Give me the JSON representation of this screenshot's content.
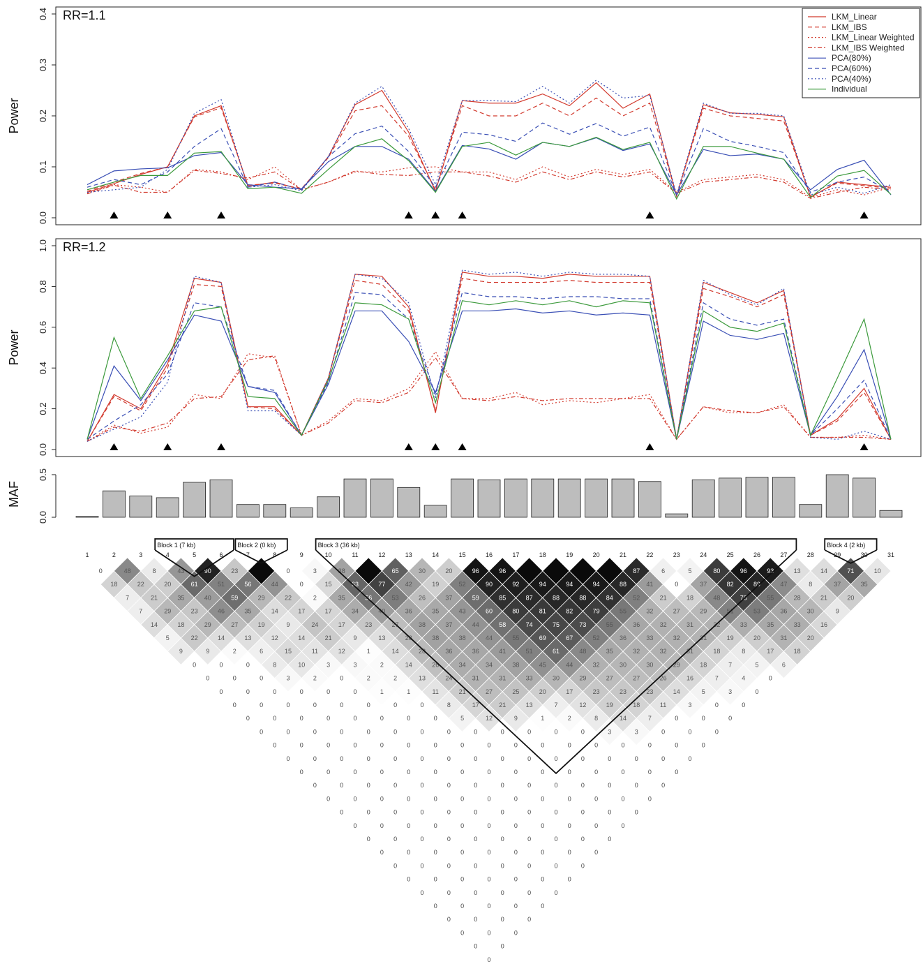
{
  "chart_data": [
    {
      "type": "line",
      "panel_label": "RR=1.1",
      "ylabel": "Power",
      "ylim": [
        0,
        0.4
      ],
      "yticks": [
        "0.0",
        "0.1",
        "0.2",
        "0.3",
        "0.4"
      ],
      "x": [
        1,
        2,
        3,
        4,
        5,
        6,
        7,
        8,
        9,
        10,
        11,
        12,
        13,
        14,
        15,
        16,
        17,
        18,
        19,
        20,
        21,
        22,
        23,
        24,
        25,
        26,
        27,
        28,
        29,
        30,
        31
      ],
      "causal_snp_markers": [
        2,
        4,
        6,
        13,
        14,
        15,
        22,
        30
      ],
      "legend_position": "top-right",
      "series": [
        {
          "name": "LKM_Linear",
          "color": "#d23a2e",
          "dash": "solid",
          "values": [
            0.05,
            0.067,
            0.085,
            0.1,
            0.2,
            0.22,
            0.062,
            0.07,
            0.055,
            0.12,
            0.222,
            0.25,
            0.168,
            0.052,
            0.23,
            0.225,
            0.225,
            0.243,
            0.22,
            0.265,
            0.215,
            0.243,
            0.042,
            0.222,
            0.206,
            0.203,
            0.198,
            0.04,
            0.07,
            0.065,
            0.06
          ]
        },
        {
          "name": "LKM_IBS",
          "color": "#d23a2e",
          "dash": "dashed",
          "values": [
            0.052,
            0.07,
            0.087,
            0.1,
            0.198,
            0.216,
            0.064,
            0.068,
            0.057,
            0.118,
            0.21,
            0.22,
            0.16,
            0.055,
            0.22,
            0.2,
            0.2,
            0.225,
            0.2,
            0.235,
            0.2,
            0.225,
            0.043,
            0.215,
            0.2,
            0.195,
            0.19,
            0.042,
            0.068,
            0.063,
            0.058
          ]
        },
        {
          "name": "LKM_Linear Weighted",
          "color": "#d23a2e",
          "dash": "dotted",
          "values": [
            0.048,
            0.065,
            0.06,
            0.05,
            0.095,
            0.09,
            0.075,
            0.1,
            0.055,
            0.07,
            0.09,
            0.09,
            0.098,
            0.1,
            0.09,
            0.09,
            0.075,
            0.1,
            0.08,
            0.095,
            0.085,
            0.095,
            0.05,
            0.075,
            0.08,
            0.085,
            0.075,
            0.04,
            0.055,
            0.045,
            0.06
          ]
        },
        {
          "name": "LKM_IBS Weighted",
          "color": "#d23a2e",
          "dash": "dotdash",
          "values": [
            0.047,
            0.064,
            0.05,
            0.05,
            0.093,
            0.087,
            0.078,
            0.09,
            0.055,
            0.07,
            0.092,
            0.085,
            0.083,
            0.09,
            0.09,
            0.082,
            0.07,
            0.09,
            0.075,
            0.09,
            0.08,
            0.09,
            0.048,
            0.07,
            0.075,
            0.08,
            0.07,
            0.038,
            0.05,
            0.06,
            0.055
          ]
        },
        {
          "name": "PCA(80%)",
          "color": "#3a4fb5",
          "dash": "solid",
          "values": [
            0.065,
            0.092,
            0.096,
            0.098,
            0.122,
            0.128,
            0.065,
            0.06,
            0.057,
            0.11,
            0.14,
            0.14,
            0.115,
            0.052,
            0.142,
            0.135,
            0.115,
            0.148,
            0.14,
            0.157,
            0.132,
            0.145,
            0.045,
            0.134,
            0.122,
            0.125,
            0.115,
            0.055,
            0.095,
            0.113,
            0.045
          ]
        },
        {
          "name": "PCA(60%)",
          "color": "#3a4fb5",
          "dash": "dashed",
          "values": [
            0.06,
            0.075,
            0.065,
            0.09,
            0.14,
            0.175,
            0.06,
            0.07,
            0.055,
            0.12,
            0.165,
            0.18,
            0.13,
            0.06,
            0.168,
            0.163,
            0.15,
            0.186,
            0.164,
            0.185,
            0.16,
            0.178,
            0.045,
            0.175,
            0.15,
            0.14,
            0.128,
            0.05,
            0.07,
            0.08,
            0.05
          ]
        },
        {
          "name": "PCA(40%)",
          "color": "#3a4fb5",
          "dash": "dotted",
          "values": [
            0.05,
            0.055,
            0.06,
            0.095,
            0.205,
            0.232,
            0.06,
            0.065,
            0.053,
            0.12,
            0.225,
            0.258,
            0.175,
            0.065,
            0.23,
            0.23,
            0.228,
            0.258,
            0.225,
            0.27,
            0.235,
            0.24,
            0.045,
            0.225,
            0.205,
            0.205,
            0.2,
            0.045,
            0.06,
            0.048,
            0.065
          ]
        },
        {
          "name": "Individual",
          "color": "#3c9a3c",
          "dash": "solid",
          "values": [
            0.055,
            0.07,
            0.083,
            0.083,
            0.127,
            0.13,
            0.057,
            0.06,
            0.048,
            0.095,
            0.14,
            0.155,
            0.112,
            0.05,
            0.14,
            0.148,
            0.123,
            0.148,
            0.14,
            0.158,
            0.134,
            0.148,
            0.037,
            0.14,
            0.14,
            0.127,
            0.115,
            0.04,
            0.082,
            0.093,
            0.046
          ]
        }
      ]
    },
    {
      "type": "line",
      "panel_label": "RR=1.2",
      "ylabel": "Power",
      "ylim": [
        0,
        1.0
      ],
      "yticks": [
        "0.0",
        "0.2",
        "0.4",
        "0.6",
        "0.8",
        "1.0"
      ],
      "x": [
        1,
        2,
        3,
        4,
        5,
        6,
        7,
        8,
        9,
        10,
        11,
        12,
        13,
        14,
        15,
        16,
        17,
        18,
        19,
        20,
        21,
        22,
        23,
        24,
        25,
        26,
        27,
        28,
        29,
        30,
        31
      ],
      "causal_snp_markers": [
        2,
        4,
        6,
        13,
        14,
        15,
        22,
        30
      ],
      "series": [
        {
          "name": "LKM_Linear",
          "color": "#d23a2e",
          "dash": "solid",
          "values": [
            0.04,
            0.27,
            0.2,
            0.42,
            0.84,
            0.82,
            0.21,
            0.21,
            0.07,
            0.35,
            0.86,
            0.85,
            0.7,
            0.18,
            0.87,
            0.85,
            0.85,
            0.84,
            0.86,
            0.85,
            0.85,
            0.85,
            0.05,
            0.82,
            0.77,
            0.72,
            0.78,
            0.07,
            0.15,
            0.3,
            0.05
          ]
        },
        {
          "name": "LKM_IBS",
          "color": "#d23a2e",
          "dash": "dashed",
          "values": [
            0.04,
            0.26,
            0.19,
            0.4,
            0.81,
            0.8,
            0.21,
            0.2,
            0.07,
            0.35,
            0.83,
            0.81,
            0.68,
            0.19,
            0.84,
            0.82,
            0.82,
            0.82,
            0.83,
            0.82,
            0.82,
            0.82,
            0.05,
            0.79,
            0.75,
            0.7,
            0.76,
            0.07,
            0.14,
            0.28,
            0.05
          ]
        },
        {
          "name": "LKM_Linear Weighted",
          "color": "#d23a2e",
          "dash": "dotted",
          "values": [
            0.04,
            0.12,
            0.08,
            0.11,
            0.27,
            0.25,
            0.47,
            0.45,
            0.07,
            0.14,
            0.25,
            0.24,
            0.3,
            0.48,
            0.25,
            0.25,
            0.28,
            0.22,
            0.24,
            0.23,
            0.25,
            0.27,
            0.05,
            0.21,
            0.18,
            0.18,
            0.22,
            0.06,
            0.06,
            0.07,
            0.05
          ]
        },
        {
          "name": "LKM_IBS Weighted",
          "color": "#d23a2e",
          "dash": "dotdash",
          "values": [
            0.04,
            0.11,
            0.09,
            0.13,
            0.25,
            0.26,
            0.44,
            0.46,
            0.07,
            0.13,
            0.24,
            0.23,
            0.28,
            0.45,
            0.25,
            0.24,
            0.26,
            0.24,
            0.25,
            0.25,
            0.25,
            0.25,
            0.05,
            0.21,
            0.19,
            0.18,
            0.21,
            0.06,
            0.06,
            0.06,
            0.05
          ]
        },
        {
          "name": "PCA(80%)",
          "color": "#3a4fb5",
          "dash": "solid",
          "values": [
            0.05,
            0.41,
            0.24,
            0.44,
            0.66,
            0.63,
            0.31,
            0.28,
            0.07,
            0.32,
            0.68,
            0.68,
            0.53,
            0.28,
            0.68,
            0.68,
            0.69,
            0.67,
            0.68,
            0.66,
            0.67,
            0.66,
            0.05,
            0.63,
            0.56,
            0.54,
            0.57,
            0.07,
            0.26,
            0.49,
            0.05
          ]
        },
        {
          "name": "PCA(60%)",
          "color": "#3a4fb5",
          "dash": "dashed",
          "values": [
            0.05,
            0.14,
            0.22,
            0.37,
            0.72,
            0.7,
            0.31,
            0.29,
            0.07,
            0.33,
            0.77,
            0.76,
            0.64,
            0.27,
            0.77,
            0.75,
            0.75,
            0.74,
            0.75,
            0.75,
            0.74,
            0.74,
            0.05,
            0.72,
            0.64,
            0.61,
            0.64,
            0.07,
            0.2,
            0.34,
            0.05
          ]
        },
        {
          "name": "PCA(40%)",
          "color": "#3a4fb5",
          "dash": "dotted",
          "values": [
            0.04,
            0.1,
            0.16,
            0.33,
            0.85,
            0.82,
            0.19,
            0.19,
            0.07,
            0.35,
            0.86,
            0.84,
            0.72,
            0.25,
            0.88,
            0.86,
            0.87,
            0.85,
            0.87,
            0.86,
            0.86,
            0.85,
            0.05,
            0.83,
            0.76,
            0.71,
            0.79,
            0.06,
            0.05,
            0.09,
            0.05
          ]
        },
        {
          "name": "Individual",
          "color": "#3c9a3c",
          "dash": "solid",
          "values": [
            0.05,
            0.55,
            0.25,
            0.46,
            0.68,
            0.7,
            0.26,
            0.25,
            0.07,
            0.34,
            0.72,
            0.71,
            0.64,
            0.23,
            0.73,
            0.71,
            0.73,
            0.71,
            0.73,
            0.7,
            0.73,
            0.72,
            0.05,
            0.68,
            0.6,
            0.58,
            0.62,
            0.07,
            0.35,
            0.64,
            0.05
          ]
        }
      ]
    },
    {
      "type": "bar",
      "ylabel": "MAF",
      "ylim": [
        0,
        0.5
      ],
      "yticks": [
        "0.0",
        "0.5"
      ],
      "categories": [
        "1",
        "2",
        "3",
        "4",
        "5",
        "6",
        "7",
        "8",
        "9",
        "10",
        "11",
        "12",
        "13",
        "14",
        "15",
        "16",
        "17",
        "18",
        "19",
        "20",
        "21",
        "22",
        "23",
        "24",
        "25",
        "26",
        "27",
        "28",
        "29",
        "30",
        "31"
      ],
      "values": [
        0.01,
        0.31,
        0.25,
        0.23,
        0.41,
        0.44,
        0.15,
        0.15,
        0.11,
        0.24,
        0.45,
        0.45,
        0.35,
        0.14,
        0.45,
        0.44,
        0.45,
        0.45,
        0.45,
        0.45,
        0.45,
        0.42,
        0.04,
        0.44,
        0.46,
        0.47,
        0.47,
        0.15,
        0.5,
        0.46,
        0.08
      ],
      "bar_color": "#bdbdbd"
    },
    {
      "type": "heatmap",
      "snp_labels": [
        "1",
        "2",
        "3",
        "4",
        "5",
        "6",
        "7",
        "8",
        "9",
        "10",
        "11",
        "12",
        "13",
        "14",
        "15",
        "16",
        "17",
        "18",
        "19",
        "20",
        "21",
        "22",
        "23",
        "24",
        "25",
        "26",
        "27",
        "28",
        "29",
        "30",
        "31"
      ],
      "blocks": [
        {
          "label": "Block 1 (7 kb)",
          "start": 4,
          "end": 6
        },
        {
          "label": "Block 2 (0 kb)",
          "start": 7,
          "end": 8
        },
        {
          "label": "Block 3 (36 kb)",
          "start": 10,
          "end": 27
        },
        {
          "label": "Block 4 (2 kb)",
          "start": 29,
          "end": 30
        }
      ],
      "adjacent_pair_values": [
        0,
        48,
        8,
        43,
        90,
        23,
        100,
        0,
        3,
        38,
        100,
        65,
        30,
        20,
        96,
        96,
        100,
        100,
        100,
        100,
        87,
        6,
        5,
        80,
        96,
        93,
        13,
        14,
        71,
        10
      ],
      "cell_values_note": "r2 x 100 between SNP i and j; diagonal-adjacent row shown above, remaining cells shaded by value"
    }
  ]
}
